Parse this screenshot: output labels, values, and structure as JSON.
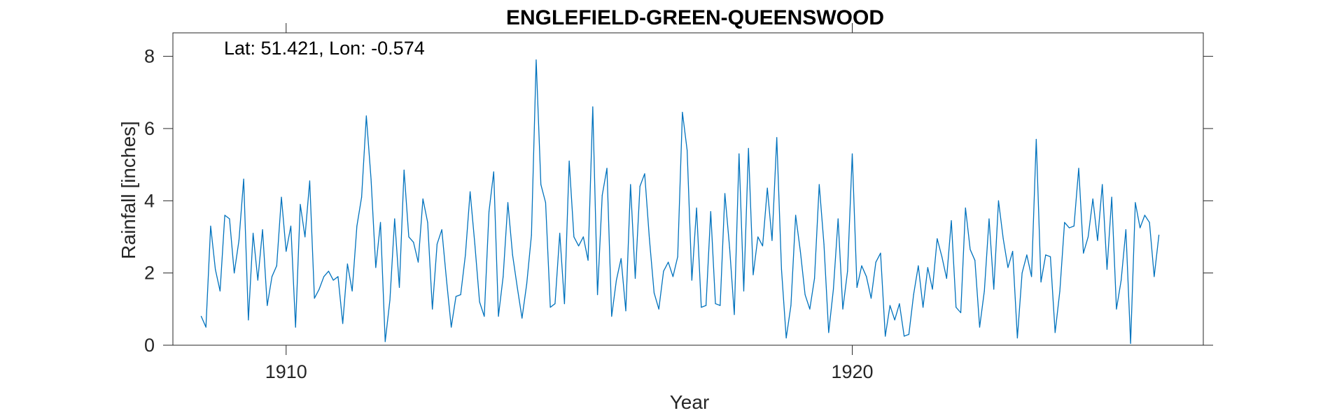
{
  "chart_data": {
    "type": "line",
    "title": "ENGLEFIELD-GREEN-QUEENSWOOD",
    "annotation": "Lat: 51.421, Lon: -0.574",
    "xlabel": "Year",
    "ylabel": "Rainfall [inches]",
    "xlim": [
      1908.0,
      1926.2
    ],
    "ylim": [
      0,
      8.65
    ],
    "xticks": [
      1910,
      1920
    ],
    "yticks": [
      0,
      2,
      4,
      6,
      8
    ],
    "grid": false,
    "line_color": "#0072bd",
    "series": [
      {
        "x_start": 1908.5,
        "step": 0.08333,
        "x_unit": "year (monthly)",
        "values": [
          0.8,
          0.5,
          3.3,
          2.1,
          1.5,
          3.6,
          3.5,
          2.0,
          2.9,
          4.6,
          0.7,
          3.1,
          1.8,
          3.2,
          1.1,
          1.9,
          2.2,
          4.1,
          2.6,
          3.3,
          0.5,
          3.9,
          3.0,
          4.55,
          1.3,
          1.55,
          1.9,
          2.05,
          1.8,
          1.9,
          0.6,
          2.25,
          1.5,
          3.3,
          4.1,
          6.35,
          4.6,
          2.15,
          3.4,
          0.1,
          1.25,
          3.5,
          1.6,
          4.85,
          3.0,
          2.85,
          2.3,
          4.05,
          3.4,
          1.0,
          2.8,
          3.2,
          1.8,
          0.5,
          1.35,
          1.4,
          2.5,
          4.25,
          2.8,
          1.2,
          0.8,
          3.7,
          4.8,
          0.8,
          1.9,
          3.95,
          2.5,
          1.6,
          0.75,
          1.7,
          3.05,
          7.9,
          4.45,
          3.95,
          1.05,
          1.15,
          3.1,
          1.15,
          5.1,
          3.0,
          2.75,
          3.0,
          2.35,
          6.6,
          1.4,
          4.15,
          4.9,
          0.8,
          1.8,
          2.4,
          0.95,
          4.45,
          1.85,
          4.4,
          4.75,
          2.95,
          1.45,
          1.0,
          2.05,
          2.3,
          1.9,
          2.45,
          6.45,
          5.4,
          1.8,
          3.8,
          1.05,
          1.1,
          3.7,
          1.15,
          1.1,
          4.2,
          2.7,
          0.85,
          5.3,
          1.5,
          5.45,
          1.95,
          3.0,
          2.75,
          4.35,
          2.9,
          5.75,
          2.1,
          0.2,
          1.1,
          3.6,
          2.6,
          1.4,
          1.0,
          1.85,
          4.45,
          2.8,
          0.35,
          1.55,
          3.5,
          1.0,
          2.05,
          5.3,
          1.6,
          2.2,
          1.9,
          1.3,
          2.3,
          2.55,
          0.25,
          1.1,
          0.7,
          1.15,
          0.25,
          0.3,
          1.4,
          2.2,
          1.05,
          2.15,
          1.55,
          2.95,
          2.45,
          1.85,
          3.45,
          1.05,
          0.9,
          3.8,
          2.65,
          2.35,
          0.5,
          1.5,
          3.5,
          1.55,
          4.0,
          2.95,
          2.15,
          2.6,
          0.2,
          2.0,
          2.5,
          1.9,
          5.7,
          1.75,
          2.5,
          2.45,
          0.35,
          1.5,
          3.4,
          3.25,
          3.3,
          4.9,
          2.55,
          3.0,
          4.05,
          2.9,
          4.45,
          2.1,
          4.1,
          1.0,
          1.8,
          3.2,
          0.05,
          3.95,
          3.25,
          3.6,
          3.4,
          1.9,
          3.05
        ]
      }
    ]
  }
}
